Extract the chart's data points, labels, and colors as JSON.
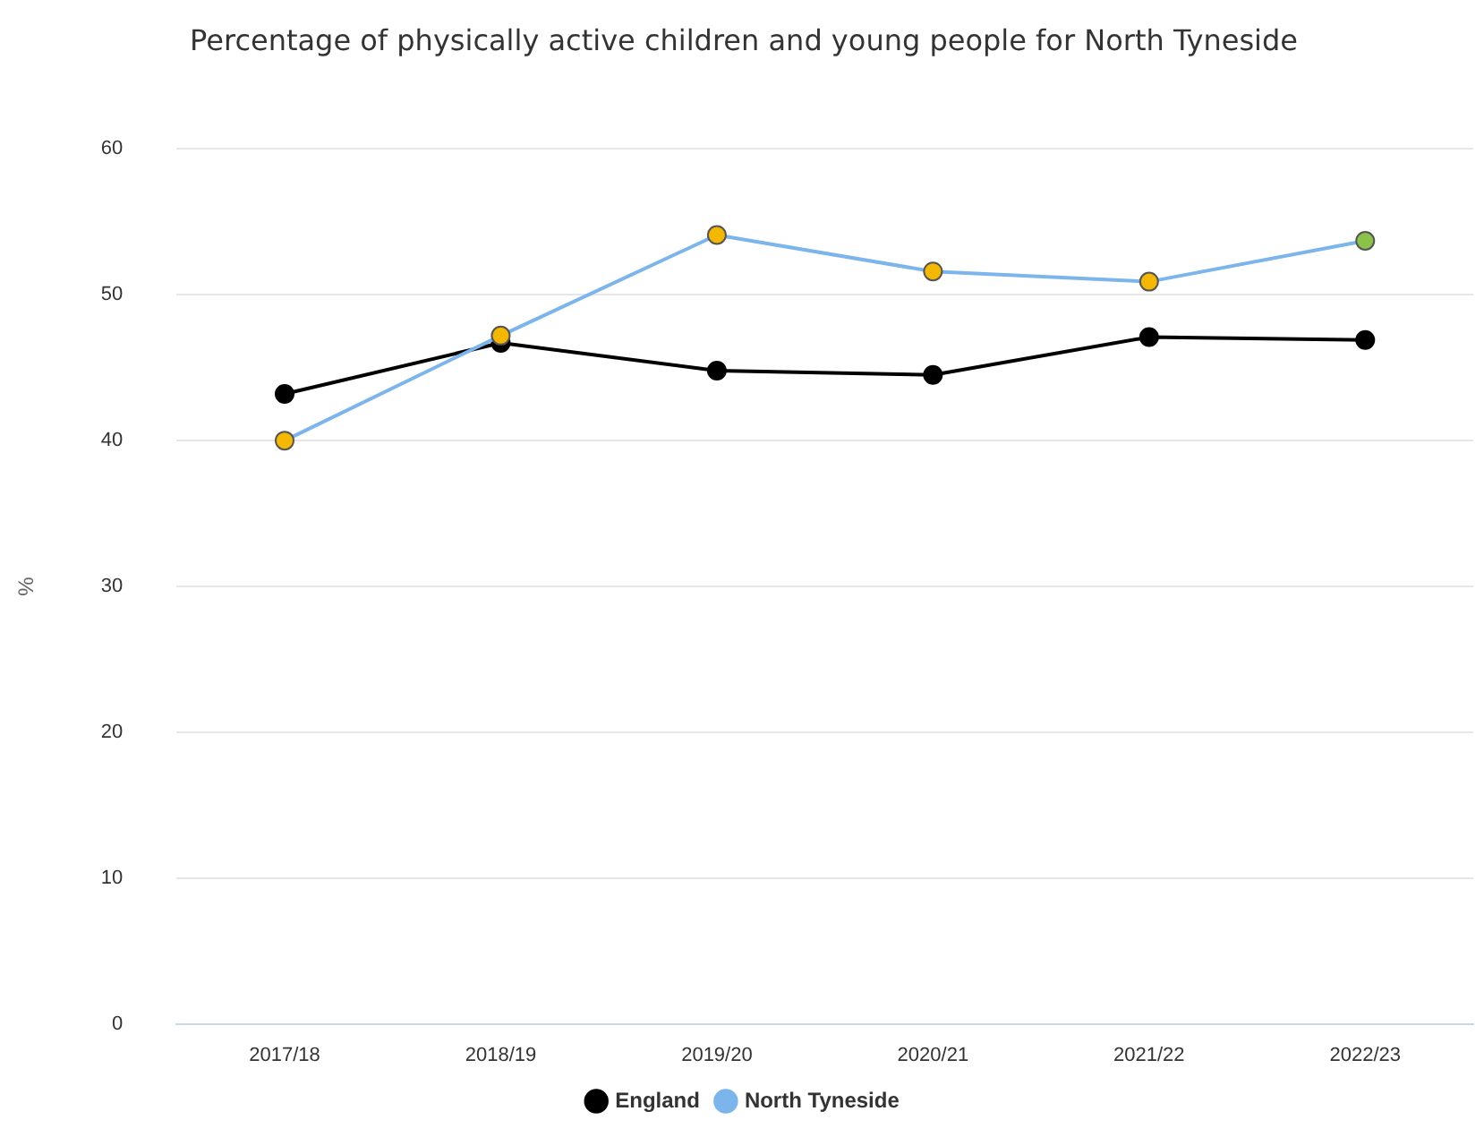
{
  "chart_data": {
    "type": "line",
    "title": "Percentage of physically active children and young people for North Tyneside",
    "ylabel": "%",
    "categories": [
      "2017/18",
      "2018/19",
      "2019/20",
      "2020/21",
      "2021/22",
      "2022/23"
    ],
    "series": [
      {
        "name": "England",
        "color": "#000000",
        "values": [
          43.2,
          46.7,
          44.8,
          44.5,
          47.1,
          46.9
        ]
      },
      {
        "name": "North Tyneside",
        "color": "#7cb5ec",
        "colors": [
          "#f5b800",
          "#f5b800",
          "#f5b800",
          "#f5b800",
          "#f5b800",
          "#8bc34a"
        ],
        "values": [
          40.0,
          47.2,
          54.1,
          51.6,
          50.9,
          53.7
        ]
      }
    ],
    "ylim": [
      0,
      60
    ],
    "yticks": [
      0,
      10,
      20,
      30,
      40,
      50,
      60
    ],
    "grid": "y",
    "legend": "bottom",
    "marker": "circle",
    "line_style": "solid"
  }
}
